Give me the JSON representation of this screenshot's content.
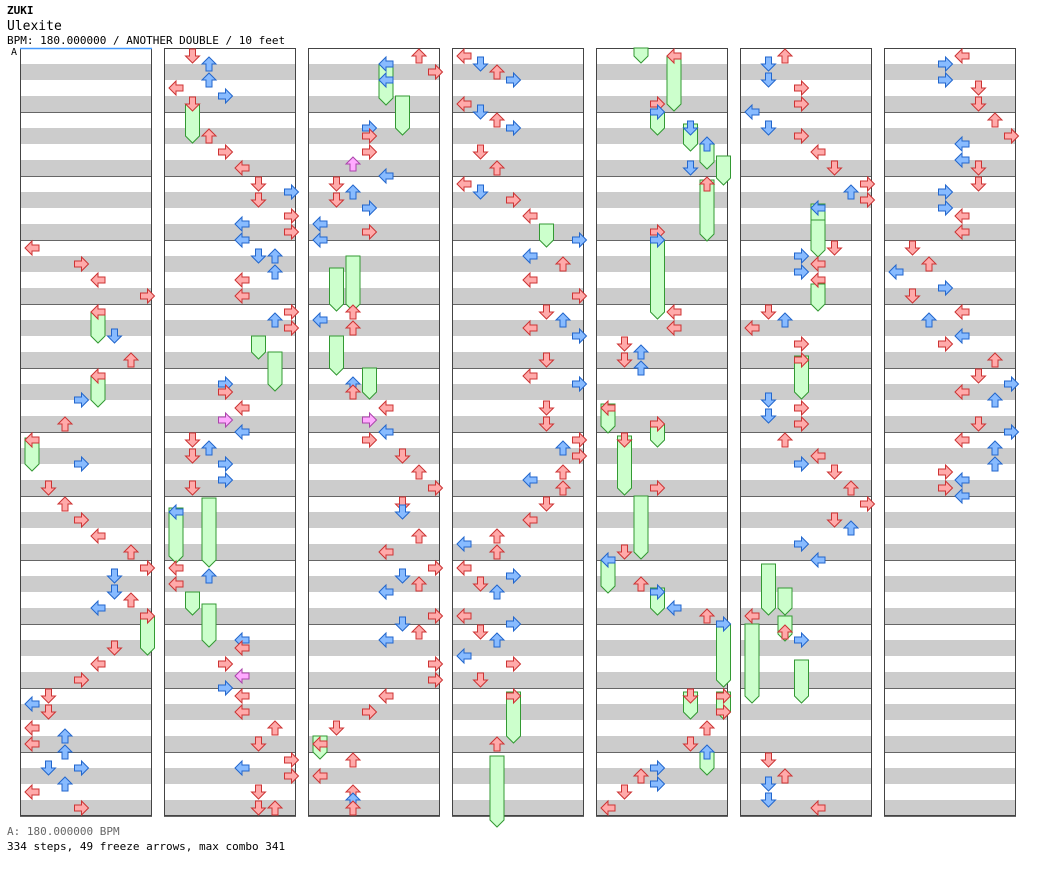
{
  "header": {
    "artist": "ZUKI",
    "title": "Ulexite",
    "meta": "BPM: 180.000000 / ANOTHER DOUBLE / 10 feet",
    "bpm_marker": "A"
  },
  "footer": {
    "bpm_line": "A: 180.000000 BPM",
    "stats_line": "334 steps, 49 freeze arrows, max combo 341"
  },
  "colors": {
    "lane_stripe": "#cccccc",
    "lane_bg": "#ffffff",
    "red_arrow": "#ffaaaa",
    "red_edge": "#cc3333",
    "blue_arrow": "#88bbff",
    "blue_edge": "#2266cc",
    "pink_arrow": "#ffaaff",
    "freeze_fill": "#ccffcc",
    "freeze_edge": "#339933",
    "bpm_line": "#4499ff"
  },
  "chart_data": {
    "type": "step-chart",
    "style": "DOUBLE",
    "panels": [
      "P1 Left",
      "P1 Down",
      "P1 Up",
      "P1 Right",
      "P2 Left",
      "P2 Down",
      "P2 Up",
      "P2 Right"
    ],
    "columns": 7,
    "measures_per_column": 12,
    "total_steps": 334,
    "freeze_arrows": 49,
    "max_combo": 341,
    "bpm": 180.0
  }
}
